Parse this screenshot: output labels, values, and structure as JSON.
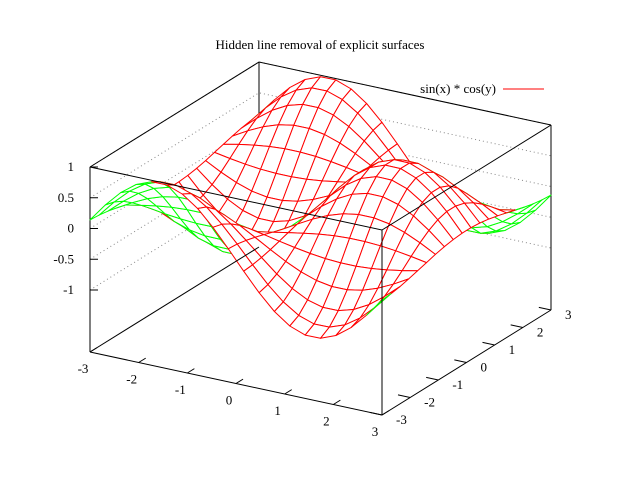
{
  "chart_data": {
    "type": "surface",
    "title": "Hidden line removal of explicit surfaces",
    "function": "sin(x) * cos(y)",
    "legend": {
      "label": "sin(x) * cos(y)",
      "position": "top-right"
    },
    "xrange": [
      -3,
      3
    ],
    "yrange": [
      -3,
      3
    ],
    "zrange": [
      -1,
      1
    ],
    "xticks": [
      "-3",
      "-2",
      "-1",
      "0",
      "1",
      "2",
      "3"
    ],
    "yticks": [
      "-3",
      "-2",
      "-1",
      "0",
      "1",
      "2",
      "3"
    ],
    "zticks": [
      "1",
      "0.5",
      "0",
      "-0.5",
      "-1"
    ],
    "isosamples": 20,
    "hidden3d": true,
    "colors": {
      "top": "#ff0000",
      "bottom": "#00ff00",
      "axes": "#000000",
      "grid": "#888888"
    }
  }
}
